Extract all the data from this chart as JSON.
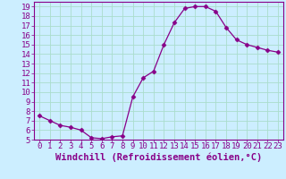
{
  "x": [
    0,
    1,
    2,
    3,
    4,
    5,
    6,
    7,
    8,
    9,
    10,
    11,
    12,
    13,
    14,
    15,
    16,
    17,
    18,
    19,
    20,
    21,
    22,
    23
  ],
  "y": [
    7.5,
    7.0,
    6.5,
    6.3,
    6.0,
    5.2,
    5.1,
    5.3,
    5.4,
    9.5,
    11.5,
    12.2,
    15.0,
    17.3,
    18.8,
    19.0,
    19.0,
    18.5,
    16.8,
    15.5,
    15.0,
    14.7,
    14.4,
    14.2
  ],
  "line_color": "#880088",
  "marker": "D",
  "marker_size": 2.5,
  "xlabel": "Windchill (Refroidissement éolien,°C)",
  "ylabel": "",
  "title": "",
  "xlim": [
    -0.5,
    23.5
  ],
  "ylim": [
    5,
    19.5
  ],
  "yticks": [
    5,
    6,
    7,
    8,
    9,
    10,
    11,
    12,
    13,
    14,
    15,
    16,
    17,
    18,
    19
  ],
  "xticks": [
    0,
    1,
    2,
    3,
    4,
    5,
    6,
    7,
    8,
    9,
    10,
    11,
    12,
    13,
    14,
    15,
    16,
    17,
    18,
    19,
    20,
    21,
    22,
    23
  ],
  "bg_color": "#cceeff",
  "grid_color": "#aaddcc",
  "tick_color": "#880088",
  "label_color": "#880088",
  "font_size": 6.5,
  "xlabel_fontsize": 7.5
}
